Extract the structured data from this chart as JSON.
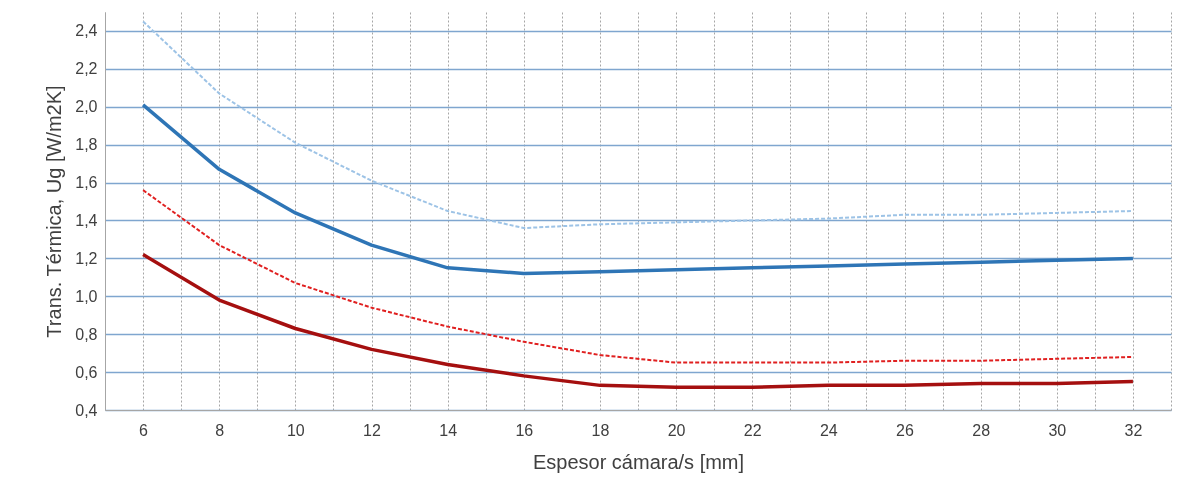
{
  "chart_data": {
    "type": "line",
    "xlabel": "Espesor cámara/s [mm]",
    "ylabel": "Trans. Térmica, Ug [W/m2K]",
    "x": [
      6,
      8,
      10,
      12,
      14,
      16,
      18,
      20,
      22,
      24,
      26,
      28,
      30,
      32
    ],
    "series": [
      {
        "color": "#9dc3e6",
        "line_style": "dashed",
        "values": [
          2.45,
          2.07,
          1.81,
          1.61,
          1.45,
          1.36,
          1.38,
          1.39,
          1.4,
          1.41,
          1.43,
          1.43,
          1.44,
          1.45
        ]
      },
      {
        "color": "#2e75b6",
        "line_style": "solid",
        "values": [
          2.01,
          1.67,
          1.44,
          1.27,
          1.15,
          1.12,
          1.13,
          1.14,
          1.15,
          1.16,
          1.17,
          1.18,
          1.19,
          1.2
        ]
      },
      {
        "color": "#e02020",
        "line_style": "dashed",
        "values": [
          1.56,
          1.27,
          1.07,
          0.94,
          0.84,
          0.76,
          0.69,
          0.65,
          0.65,
          0.65,
          0.66,
          0.66,
          0.67,
          0.68
        ]
      },
      {
        "color": "#a50f0f",
        "line_style": "solid",
        "values": [
          1.22,
          0.98,
          0.83,
          0.72,
          0.64,
          0.58,
          0.53,
          0.52,
          0.52,
          0.53,
          0.53,
          0.54,
          0.54,
          0.55
        ]
      }
    ],
    "xlim": [
      5,
      33
    ],
    "xticks": [
      {
        "value": 5,
        "label": null
      },
      6,
      {
        "value": 7,
        "label": null
      },
      8,
      {
        "value": 9,
        "label": null
      },
      10,
      {
        "value": 11,
        "label": null
      },
      12,
      {
        "value": 13,
        "label": null
      },
      14,
      {
        "value": 15,
        "label": null
      },
      16,
      {
        "value": 17,
        "label": null
      },
      18,
      {
        "value": 19,
        "label": null
      },
      20,
      {
        "value": 21,
        "label": null
      },
      22,
      {
        "value": 23,
        "label": null
      },
      24,
      {
        "value": 25,
        "label": null
      },
      26,
      {
        "value": 27,
        "label": null
      },
      28,
      {
        "value": 29,
        "label": null
      },
      30,
      {
        "value": 31,
        "label": null
      },
      32,
      {
        "value": 33,
        "label": null
      }
    ],
    "ylim": [
      0.4,
      2.5
    ],
    "yticks": [
      {
        "value": 0.4,
        "label": "0,4"
      },
      {
        "value": 0.6,
        "label": "0,6"
      },
      {
        "value": 0.8,
        "label": "0,8"
      },
      {
        "value": 1.0,
        "label": "1,0"
      },
      {
        "value": 1.2,
        "label": "1,2"
      },
      {
        "value": 1.4,
        "label": "1,4"
      },
      {
        "value": 1.6,
        "label": "1,6"
      },
      {
        "value": 1.8,
        "label": "1,8"
      },
      {
        "value": 2.0,
        "label": "2,0"
      },
      {
        "value": 2.2,
        "label": "2,2"
      },
      {
        "value": 2.4,
        "label": "2,4"
      }
    ],
    "grid": true,
    "legend": false,
    "marker": "none"
  }
}
